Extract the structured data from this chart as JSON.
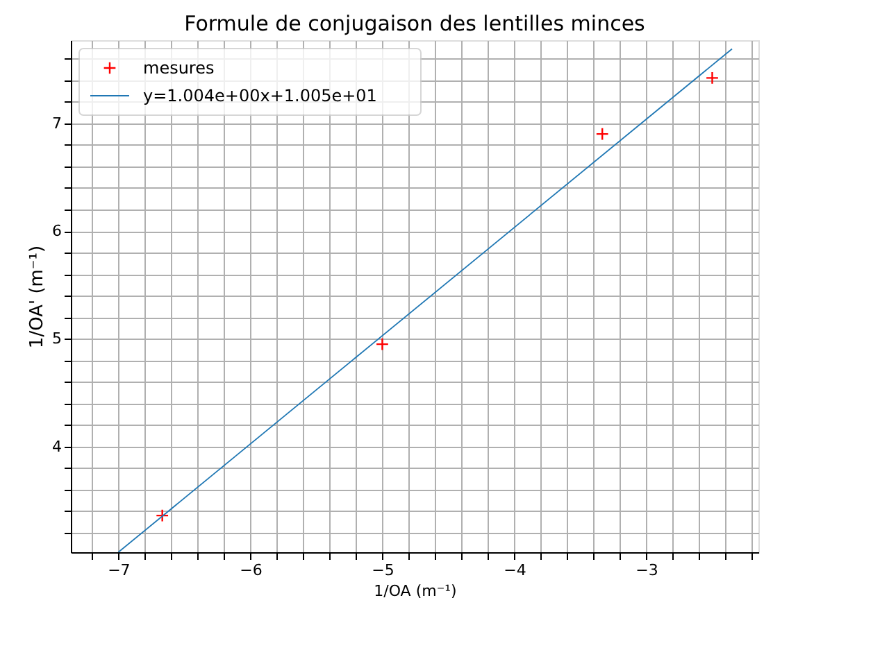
{
  "chart_data": {
    "type": "scatter",
    "title": "Formule de conjugaison des lentilles minces",
    "xlabel": "1/OA (m⁻¹)",
    "ylabel": "1/OA' (m⁻¹)",
    "x": [
      -6.667,
      -5,
      -3.333,
      -2.5
    ],
    "series": [
      {
        "name": "mesures",
        "type": "scatter",
        "color": "#ff0000",
        "marker": "cross",
        "values": [
          3.36,
          4.95,
          6.9,
          7.42
        ]
      },
      {
        "name": "y=1.004e+00x+1.005e+01",
        "type": "line",
        "color": "#1f77b4",
        "line_style": "solid",
        "marker": "none",
        "x": [
          -7,
          -2.35
        ],
        "values": [
          3.02,
          7.69
        ]
      }
    ],
    "xlim": [
      -7.36,
      -2.15
    ],
    "ylim": [
      3.02,
      7.77
    ],
    "xticks": [
      {
        "value": -7.2,
        "label": null
      },
      -7,
      {
        "value": -6.8,
        "label": null
      },
      {
        "value": -6.6,
        "label": null
      },
      {
        "value": -6.4,
        "label": null
      },
      {
        "value": -6.2,
        "label": null
      },
      -6,
      {
        "value": -5.8,
        "label": null
      },
      {
        "value": -5.6,
        "label": null
      },
      {
        "value": -5.4,
        "label": null
      },
      {
        "value": -5.2,
        "label": null
      },
      -5,
      {
        "value": -4.8,
        "label": null
      },
      {
        "value": -4.6,
        "label": null
      },
      {
        "value": -4.4,
        "label": null
      },
      {
        "value": -4.2,
        "label": null
      },
      -4,
      {
        "value": -3.8,
        "label": null
      },
      {
        "value": -3.6,
        "label": null
      },
      {
        "value": -3.4,
        "label": null
      },
      {
        "value": -3.2,
        "label": null
      },
      -3,
      {
        "value": -2.8,
        "label": null
      },
      {
        "value": -2.6,
        "label": null
      },
      {
        "value": -2.4,
        "label": null
      },
      {
        "value": -2.2,
        "label": null
      }
    ],
    "yticks": [
      {
        "value": 3.2,
        "label": null
      },
      {
        "value": 3.4,
        "label": null
      },
      {
        "value": 3.6,
        "label": null
      },
      {
        "value": 3.8,
        "label": null
      },
      4,
      {
        "value": 4.2,
        "label": null
      },
      {
        "value": 4.4,
        "label": null
      },
      {
        "value": 4.6,
        "label": null
      },
      {
        "value": 4.8,
        "label": null
      },
      5,
      {
        "value": 5.2,
        "label": null
      },
      {
        "value": 5.4,
        "label": null
      },
      {
        "value": 5.6,
        "label": null
      },
      {
        "value": 5.8,
        "label": null
      },
      6,
      {
        "value": 6.2,
        "label": null
      },
      {
        "value": 6.4,
        "label": null
      },
      {
        "value": 6.6,
        "label": null
      },
      {
        "value": 6.8,
        "label": null
      },
      7,
      {
        "value": 7.2,
        "label": null
      },
      {
        "value": 7.4,
        "label": null
      },
      {
        "value": 7.6,
        "label": null
      }
    ],
    "grid": true,
    "legend": "top left"
  }
}
